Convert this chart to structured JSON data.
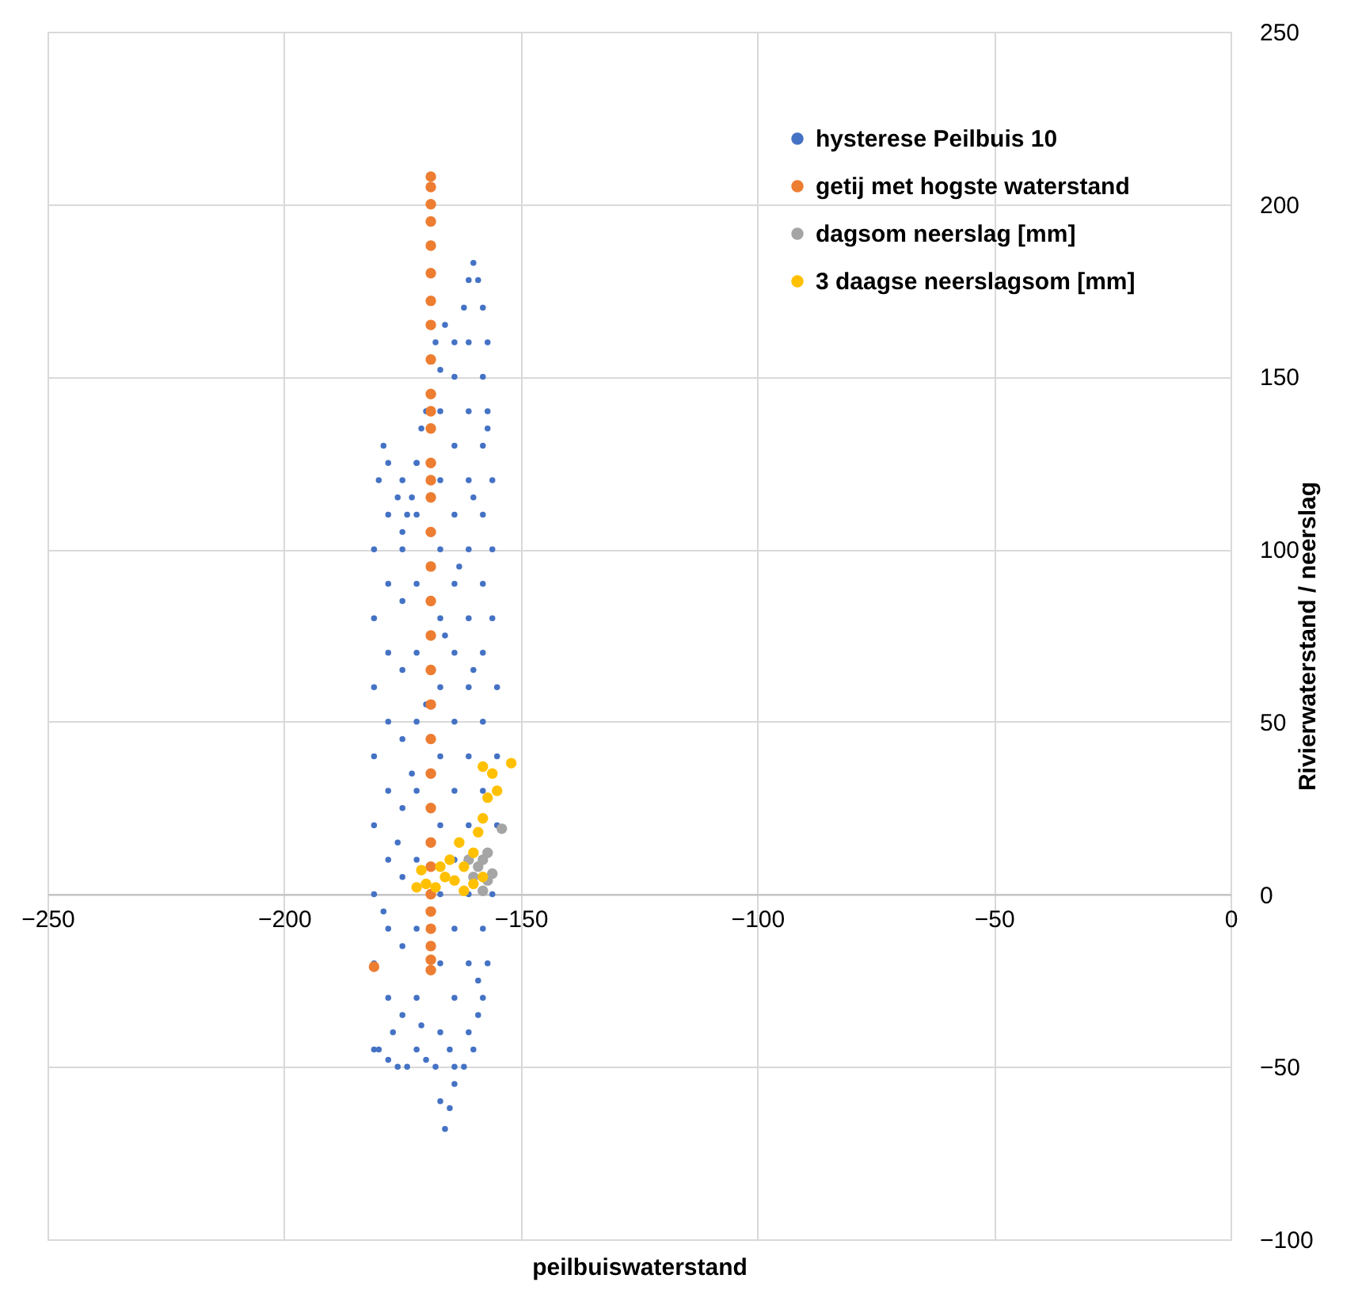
{
  "chart_data": {
    "type": "scatter",
    "xlabel": "peilbuiswaterstand",
    "ylabel": "Rivierwaterstand / neerslag",
    "xlim": [
      -250,
      0
    ],
    "xticks": [
      -250,
      -200,
      -150,
      -100,
      -50,
      0
    ],
    "ylim": [
      -100,
      250
    ],
    "yticks": [
      -100,
      -50,
      0,
      50,
      100,
      150,
      200,
      250
    ],
    "grid": true,
    "legend": "top right",
    "marker": "circle",
    "series": [
      {
        "name": "hysterese Peilbuis 10",
        "color": "#4472c4",
        "x": [
          -181,
          -181,
          -181,
          -181,
          -181,
          -181,
          -181,
          -181,
          -180,
          -179,
          -178,
          -176,
          -175,
          -174,
          -173,
          -172,
          -171,
          -170,
          -167,
          -168,
          -166,
          -164,
          -162,
          -161,
          -160,
          -159,
          -158,
          -157,
          -157,
          -156,
          -156,
          -156,
          -155,
          -155,
          -155,
          -156,
          -157,
          -159,
          -160,
          -162,
          -164,
          -165,
          -166,
          -167,
          -168,
          -170,
          -172,
          -174,
          -176,
          -178,
          -180,
          -178,
          -178,
          -178,
          -178,
          -178,
          -178,
          -178,
          -178,
          -175,
          -175,
          -175,
          -175,
          -175,
          -175,
          -175,
          -175,
          -175,
          -172,
          -172,
          -172,
          -172,
          -172,
          -172,
          -172,
          -172,
          -172,
          -167,
          -167,
          -167,
          -167,
          -167,
          -167,
          -167,
          -167,
          -167,
          -167,
          -164,
          -164,
          -164,
          -164,
          -164,
          -164,
          -164,
          -164,
          -164,
          -164,
          -164,
          -161,
          -161,
          -161,
          -161,
          -161,
          -161,
          -161,
          -161,
          -161,
          -161,
          -161,
          -158,
          -158,
          -160,
          -158,
          -158,
          -158,
          -158,
          -158,
          -158,
          -158,
          -179,
          -176,
          -173,
          -170,
          -166,
          -163,
          -160,
          -157,
          -177,
          -171,
          -165,
          -159
        ],
        "values": [
          -45,
          -20,
          0,
          20,
          40,
          60,
          80,
          100,
          120,
          130,
          125,
          115,
          105,
          110,
          115,
          125,
          135,
          140,
          152,
          160,
          165,
          160,
          170,
          178,
          183,
          178,
          170,
          160,
          140,
          120,
          100,
          80,
          60,
          40,
          20,
          0,
          -20,
          -35,
          -45,
          -50,
          -55,
          -62,
          -68,
          -60,
          -50,
          -48,
          -45,
          -50,
          -50,
          -48,
          -45,
          -30,
          -10,
          10,
          30,
          50,
          70,
          90,
          110,
          -35,
          -15,
          5,
          25,
          45,
          65,
          85,
          100,
          120,
          -30,
          -10,
          10,
          30,
          50,
          70,
          90,
          110,
          125,
          -40,
          -20,
          0,
          20,
          40,
          60,
          80,
          100,
          120,
          140,
          -50,
          -30,
          -10,
          10,
          30,
          50,
          70,
          90,
          110,
          130,
          150,
          -40,
          -20,
          0,
          20,
          40,
          60,
          80,
          100,
          120,
          140,
          160,
          -30,
          -10,
          65,
          30,
          50,
          70,
          90,
          110,
          130,
          150,
          -5,
          15,
          35,
          55,
          75,
          95,
          115,
          135,
          -40,
          -38,
          -45,
          -25
        ]
      },
      {
        "name": "getij met hogste waterstand",
        "color": "#ed7d31",
        "x": [
          -169,
          -169,
          -169,
          -169,
          -169,
          -169,
          -169,
          -169,
          -169,
          -169,
          -169,
          -169,
          -169,
          -169,
          -169,
          -169,
          -169,
          -169,
          -169,
          -169,
          -169,
          -169,
          -169,
          -169,
          -169,
          -169,
          -169,
          -169,
          -169,
          -169,
          -169,
          -169,
          -181
        ],
        "values": [
          208,
          205,
          200,
          195,
          188,
          180,
          172,
          165,
          155,
          145,
          135,
          125,
          115,
          105,
          95,
          85,
          75,
          65,
          55,
          45,
          35,
          25,
          15,
          8,
          0,
          -5,
          -10,
          -15,
          -19,
          -22,
          120,
          140,
          -21
        ]
      },
      {
        "name": "dagsom neerslag [mm]",
        "color": "#a5a5a5",
        "x": [
          -160,
          -159,
          -158,
          -157,
          -156,
          -157,
          -154,
          -158,
          -161
        ],
        "values": [
          5,
          8,
          10,
          4,
          6,
          12,
          19,
          1,
          10
        ]
      },
      {
        "name": "3 daagse neerslagsom [mm]",
        "color": "#ffc000",
        "x": [
          -172,
          -170,
          -168,
          -166,
          -164,
          -162,
          -160,
          -159,
          -158,
          -157,
          -156,
          -155,
          -152,
          -163,
          -165,
          -167,
          -171,
          -160,
          -158,
          -162,
          -158
        ],
        "values": [
          2,
          3,
          2,
          5,
          4,
          8,
          12,
          18,
          22,
          28,
          35,
          30,
          38,
          15,
          10,
          8,
          7,
          3,
          5,
          1,
          37
        ]
      }
    ]
  }
}
